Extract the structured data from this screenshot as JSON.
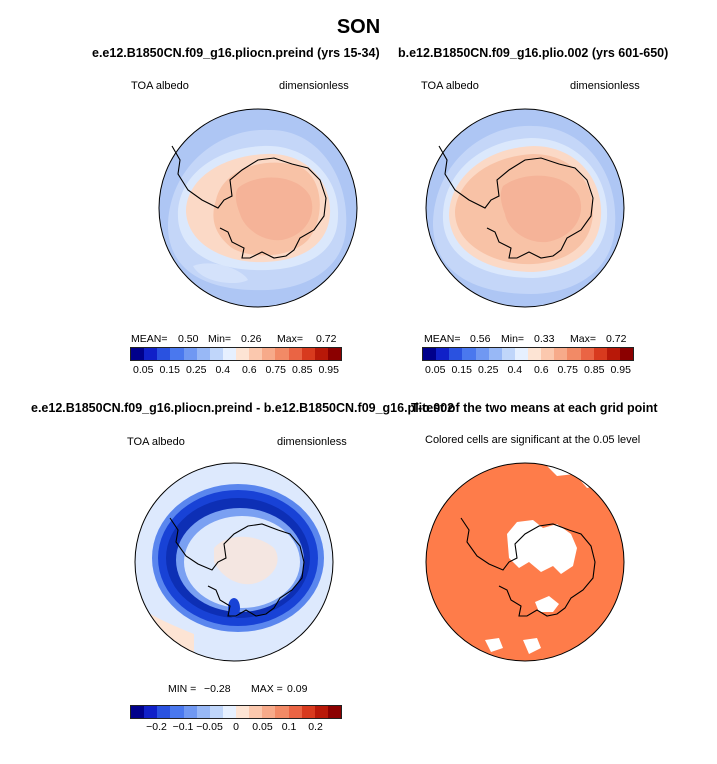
{
  "title": "SON",
  "panels": [
    {
      "title": "e.e12.B1850CN.f09_g16.pliocn.preind (yrs 15-34)",
      "variable": "TOA albedo",
      "units": "dimensionless",
      "stats": {
        "mean_label": "MEAN=",
        "mean": "0.50",
        "min_label": "Min=",
        "min": "0.26",
        "max_label": "Max=",
        "max": "0.72"
      }
    },
    {
      "title": "b.e12.B1850CN.f09_g16.plio.002 (yrs 601-650)",
      "variable": "TOA albedo",
      "units": "dimensionless",
      "stats": {
        "mean_label": "MEAN=",
        "mean": "0.56",
        "min_label": "Min=",
        "min": "0.33",
        "max_label": "Max=",
        "max": "0.72"
      }
    },
    {
      "title": "e.e12.B1850CN.f09_g16.pliocn.preind - b.e12.B1850CN.f09_g16.plio.002",
      "variable": "TOA albedo",
      "units": "dimensionless",
      "stats": {
        "min_label": "MIN =",
        "min": "−0.28",
        "max_label": "MAX =",
        "max": "0.09"
      }
    },
    {
      "title": "T-test of the two means at each grid point",
      "note": "Colored cells are significant at the 0.05 level"
    }
  ],
  "colorbars": {
    "abs": {
      "colors": [
        "#00008b",
        "#1020c8",
        "#2a52e0",
        "#4a78ee",
        "#7098f2",
        "#98b8f6",
        "#c0d6fa",
        "#e6f0ff",
        "#fde4d4",
        "#fbc8ae",
        "#f7aa8a",
        "#f28a66",
        "#ea6444",
        "#d83a1e",
        "#b81808",
        "#8b0000"
      ],
      "labels": [
        "0.05",
        "0.15",
        "0.25",
        "0.4",
        "0.6",
        "0.75",
        "0.85",
        "0.95"
      ]
    },
    "diff": {
      "colors": [
        "#00008b",
        "#1020c8",
        "#2a52e0",
        "#4a78ee",
        "#7098f2",
        "#98b8f6",
        "#c0d6fa",
        "#e6f0ff",
        "#fde4d4",
        "#fbc8ae",
        "#f7aa8a",
        "#f28a66",
        "#ea6444",
        "#d83a1e",
        "#b81808",
        "#8b0000"
      ],
      "labels": [
        "−0.2",
        "−0.1",
        "−0.05",
        "0",
        "0.05",
        "0.1",
        "0.2"
      ]
    }
  },
  "map_colors": {
    "ocean_low": "#c4d6f8",
    "ocean_mid": "#aec6f4",
    "ice_band": "#dbe8fc",
    "land_pale": "#fbd9c6",
    "land_mid": "#f8c2a6",
    "land_core": "#f5b398",
    "diff_bg": "#dde9fd",
    "diff_ring": "#1842d6",
    "diff_ring_dark": "#0d2fb5",
    "sig": "#fe7c4a"
  }
}
